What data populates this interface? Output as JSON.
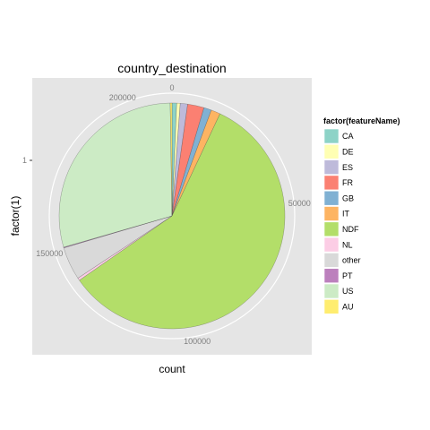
{
  "chart_data": {
    "type": "pie",
    "title": "country_destination",
    "xlabel": "count",
    "ylabel": "factor(1)",
    "y_tick": "1",
    "total": 213451,
    "radial_ticks": [
      0,
      50000,
      100000,
      150000,
      200000
    ],
    "radial_tick_labels": [
      "0",
      "50000",
      "100000",
      "150000",
      "200000"
    ],
    "legend_title": "factor(featureName)",
    "legend_position": "right",
    "series": [
      {
        "name": "CA",
        "value": 1428,
        "color": "#8DD3C7"
      },
      {
        "name": "DE",
        "value": 1061,
        "color": "#FFFFB3"
      },
      {
        "name": "ES",
        "value": 2249,
        "color": "#BEBADA"
      },
      {
        "name": "FR",
        "value": 5023,
        "color": "#FB8072"
      },
      {
        "name": "GB",
        "value": 2324,
        "color": "#80B1D3"
      },
      {
        "name": "IT",
        "value": 2835,
        "color": "#FDB462"
      },
      {
        "name": "NDF",
        "value": 124543,
        "color": "#B3DE69"
      },
      {
        "name": "NL",
        "value": 762,
        "color": "#FCCDE5"
      },
      {
        "name": "other",
        "value": 10094,
        "color": "#D9D9D9"
      },
      {
        "name": "PT",
        "value": 217,
        "color": "#BC80BD"
      },
      {
        "name": "US",
        "value": 62376,
        "color": "#CCEBC5"
      },
      {
        "name": "AU",
        "value": 539,
        "color": "#FFED6F"
      }
    ]
  }
}
